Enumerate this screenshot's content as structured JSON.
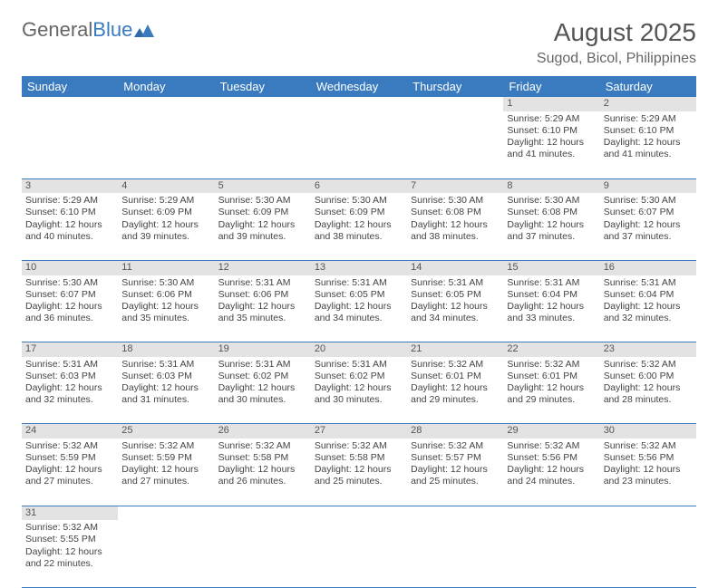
{
  "logo": {
    "text1": "General",
    "text2": "Blue"
  },
  "title": {
    "month": "August 2025",
    "location": "Sugod, Bicol, Philippines"
  },
  "colors": {
    "header_bg": "#3a7bbf",
    "header_fg": "#ffffff",
    "daynum_bg": "#e3e3e3",
    "border": "#3a7bbf",
    "text": "#444444"
  },
  "day_headers": [
    "Sunday",
    "Monday",
    "Tuesday",
    "Wednesday",
    "Thursday",
    "Friday",
    "Saturday"
  ],
  "weeks": [
    [
      null,
      null,
      null,
      null,
      null,
      {
        "n": "1",
        "sr": "Sunrise: 5:29 AM",
        "ss": "Sunset: 6:10 PM",
        "dl": "Daylight: 12 hours and 41 minutes."
      },
      {
        "n": "2",
        "sr": "Sunrise: 5:29 AM",
        "ss": "Sunset: 6:10 PM",
        "dl": "Daylight: 12 hours and 41 minutes."
      }
    ],
    [
      {
        "n": "3",
        "sr": "Sunrise: 5:29 AM",
        "ss": "Sunset: 6:10 PM",
        "dl": "Daylight: 12 hours and 40 minutes."
      },
      {
        "n": "4",
        "sr": "Sunrise: 5:29 AM",
        "ss": "Sunset: 6:09 PM",
        "dl": "Daylight: 12 hours and 39 minutes."
      },
      {
        "n": "5",
        "sr": "Sunrise: 5:30 AM",
        "ss": "Sunset: 6:09 PM",
        "dl": "Daylight: 12 hours and 39 minutes."
      },
      {
        "n": "6",
        "sr": "Sunrise: 5:30 AM",
        "ss": "Sunset: 6:09 PM",
        "dl": "Daylight: 12 hours and 38 minutes."
      },
      {
        "n": "7",
        "sr": "Sunrise: 5:30 AM",
        "ss": "Sunset: 6:08 PM",
        "dl": "Daylight: 12 hours and 38 minutes."
      },
      {
        "n": "8",
        "sr": "Sunrise: 5:30 AM",
        "ss": "Sunset: 6:08 PM",
        "dl": "Daylight: 12 hours and 37 minutes."
      },
      {
        "n": "9",
        "sr": "Sunrise: 5:30 AM",
        "ss": "Sunset: 6:07 PM",
        "dl": "Daylight: 12 hours and 37 minutes."
      }
    ],
    [
      {
        "n": "10",
        "sr": "Sunrise: 5:30 AM",
        "ss": "Sunset: 6:07 PM",
        "dl": "Daylight: 12 hours and 36 minutes."
      },
      {
        "n": "11",
        "sr": "Sunrise: 5:30 AM",
        "ss": "Sunset: 6:06 PM",
        "dl": "Daylight: 12 hours and 35 minutes."
      },
      {
        "n": "12",
        "sr": "Sunrise: 5:31 AM",
        "ss": "Sunset: 6:06 PM",
        "dl": "Daylight: 12 hours and 35 minutes."
      },
      {
        "n": "13",
        "sr": "Sunrise: 5:31 AM",
        "ss": "Sunset: 6:05 PM",
        "dl": "Daylight: 12 hours and 34 minutes."
      },
      {
        "n": "14",
        "sr": "Sunrise: 5:31 AM",
        "ss": "Sunset: 6:05 PM",
        "dl": "Daylight: 12 hours and 34 minutes."
      },
      {
        "n": "15",
        "sr": "Sunrise: 5:31 AM",
        "ss": "Sunset: 6:04 PM",
        "dl": "Daylight: 12 hours and 33 minutes."
      },
      {
        "n": "16",
        "sr": "Sunrise: 5:31 AM",
        "ss": "Sunset: 6:04 PM",
        "dl": "Daylight: 12 hours and 32 minutes."
      }
    ],
    [
      {
        "n": "17",
        "sr": "Sunrise: 5:31 AM",
        "ss": "Sunset: 6:03 PM",
        "dl": "Daylight: 12 hours and 32 minutes."
      },
      {
        "n": "18",
        "sr": "Sunrise: 5:31 AM",
        "ss": "Sunset: 6:03 PM",
        "dl": "Daylight: 12 hours and 31 minutes."
      },
      {
        "n": "19",
        "sr": "Sunrise: 5:31 AM",
        "ss": "Sunset: 6:02 PM",
        "dl": "Daylight: 12 hours and 30 minutes."
      },
      {
        "n": "20",
        "sr": "Sunrise: 5:31 AM",
        "ss": "Sunset: 6:02 PM",
        "dl": "Daylight: 12 hours and 30 minutes."
      },
      {
        "n": "21",
        "sr": "Sunrise: 5:32 AM",
        "ss": "Sunset: 6:01 PM",
        "dl": "Daylight: 12 hours and 29 minutes."
      },
      {
        "n": "22",
        "sr": "Sunrise: 5:32 AM",
        "ss": "Sunset: 6:01 PM",
        "dl": "Daylight: 12 hours and 29 minutes."
      },
      {
        "n": "23",
        "sr": "Sunrise: 5:32 AM",
        "ss": "Sunset: 6:00 PM",
        "dl": "Daylight: 12 hours and 28 minutes."
      }
    ],
    [
      {
        "n": "24",
        "sr": "Sunrise: 5:32 AM",
        "ss": "Sunset: 5:59 PM",
        "dl": "Daylight: 12 hours and 27 minutes."
      },
      {
        "n": "25",
        "sr": "Sunrise: 5:32 AM",
        "ss": "Sunset: 5:59 PM",
        "dl": "Daylight: 12 hours and 27 minutes."
      },
      {
        "n": "26",
        "sr": "Sunrise: 5:32 AM",
        "ss": "Sunset: 5:58 PM",
        "dl": "Daylight: 12 hours and 26 minutes."
      },
      {
        "n": "27",
        "sr": "Sunrise: 5:32 AM",
        "ss": "Sunset: 5:58 PM",
        "dl": "Daylight: 12 hours and 25 minutes."
      },
      {
        "n": "28",
        "sr": "Sunrise: 5:32 AM",
        "ss": "Sunset: 5:57 PM",
        "dl": "Daylight: 12 hours and 25 minutes."
      },
      {
        "n": "29",
        "sr": "Sunrise: 5:32 AM",
        "ss": "Sunset: 5:56 PM",
        "dl": "Daylight: 12 hours and 24 minutes."
      },
      {
        "n": "30",
        "sr": "Sunrise: 5:32 AM",
        "ss": "Sunset: 5:56 PM",
        "dl": "Daylight: 12 hours and 23 minutes."
      }
    ],
    [
      {
        "n": "31",
        "sr": "Sunrise: 5:32 AM",
        "ss": "Sunset: 5:55 PM",
        "dl": "Daylight: 12 hours and 22 minutes."
      },
      null,
      null,
      null,
      null,
      null,
      null
    ]
  ]
}
